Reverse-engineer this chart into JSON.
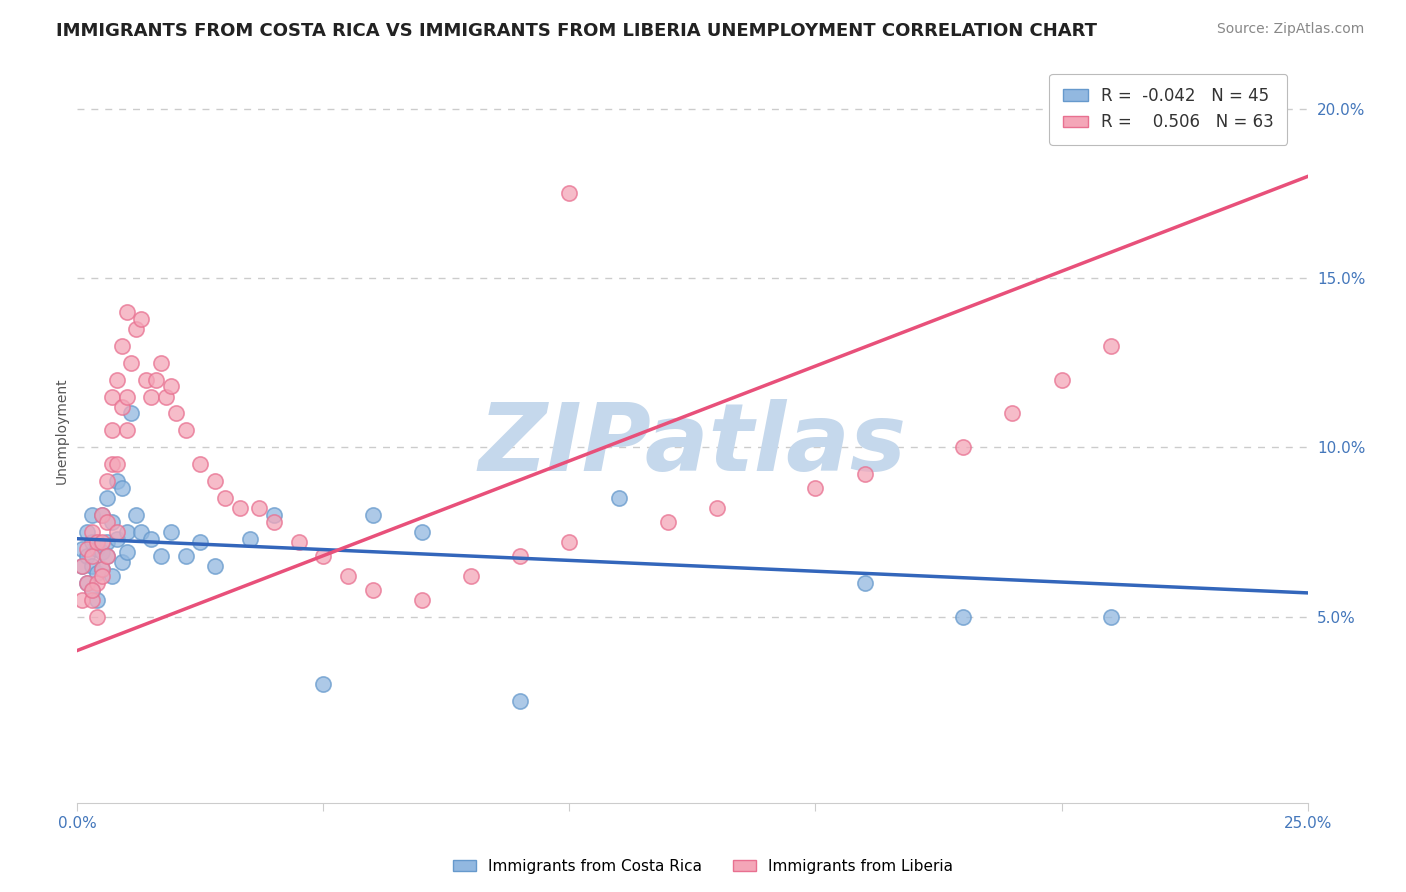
{
  "title": "IMMIGRANTS FROM COSTA RICA VS IMMIGRANTS FROM LIBERIA UNEMPLOYMENT CORRELATION CHART",
  "source": "Source: ZipAtlas.com",
  "ylabel": "Unemployment",
  "xlim": [
    0.0,
    0.25
  ],
  "ylim": [
    -0.005,
    0.215
  ],
  "ytick_positions": [
    0.05,
    0.1,
    0.15,
    0.2
  ],
  "ytick_labels": [
    "5.0%",
    "10.0%",
    "15.0%",
    "20.0%"
  ],
  "xtick_positions": [
    0.0,
    0.05,
    0.1,
    0.15,
    0.2,
    0.25
  ],
  "xtick_labels": [
    "0.0%",
    "",
    "",
    "",
    "",
    "25.0%"
  ],
  "watermark": "ZIPatlas",
  "watermark_color": "#c5d8ec",
  "costa_rica_color": "#92b8e0",
  "liberia_color": "#f4a6b8",
  "costa_rica_edge": "#6699cc",
  "liberia_edge": "#e87090",
  "costa_rica_line_color": "#3366bb",
  "liberia_line_color": "#e8507a",
  "dashed_line_y": 0.05,
  "dashed_line_color": "#cccccc",
  "grid_color": "#e8e8e8",
  "grid_dashes": [
    4,
    4
  ],
  "bg_color": "#ffffff",
  "title_fontsize": 13,
  "source_fontsize": 10,
  "tick_fontsize": 11,
  "legend_fontsize": 12,
  "ylabel_fontsize": 10,
  "watermark_fontsize": 68,
  "legend_R1": "R = ",
  "legend_V1": "-0.042",
  "legend_N1": "N = 45",
  "legend_R2": "R = ",
  "legend_V2": " 0.506",
  "legend_N2": "N = 63",
  "costa_rica_x": [
    0.001,
    0.001,
    0.002,
    0.002,
    0.002,
    0.003,
    0.003,
    0.003,
    0.003,
    0.004,
    0.004,
    0.004,
    0.005,
    0.005,
    0.005,
    0.006,
    0.006,
    0.006,
    0.007,
    0.007,
    0.008,
    0.008,
    0.009,
    0.009,
    0.01,
    0.01,
    0.011,
    0.012,
    0.013,
    0.015,
    0.017,
    0.019,
    0.022,
    0.025,
    0.028,
    0.035,
    0.04,
    0.05,
    0.06,
    0.07,
    0.09,
    0.11,
    0.16,
    0.18,
    0.21
  ],
  "costa_rica_y": [
    0.07,
    0.065,
    0.075,
    0.068,
    0.06,
    0.072,
    0.065,
    0.058,
    0.08,
    0.07,
    0.063,
    0.055,
    0.08,
    0.069,
    0.064,
    0.085,
    0.072,
    0.068,
    0.078,
    0.062,
    0.09,
    0.073,
    0.088,
    0.066,
    0.075,
    0.069,
    0.11,
    0.08,
    0.075,
    0.073,
    0.068,
    0.075,
    0.068,
    0.072,
    0.065,
    0.073,
    0.08,
    0.03,
    0.08,
    0.075,
    0.025,
    0.085,
    0.06,
    0.05,
    0.05
  ],
  "liberia_x": [
    0.001,
    0.001,
    0.002,
    0.002,
    0.003,
    0.003,
    0.003,
    0.004,
    0.004,
    0.004,
    0.005,
    0.005,
    0.005,
    0.006,
    0.006,
    0.006,
    0.007,
    0.007,
    0.007,
    0.008,
    0.008,
    0.009,
    0.009,
    0.01,
    0.01,
    0.01,
    0.011,
    0.012,
    0.013,
    0.014,
    0.015,
    0.016,
    0.017,
    0.018,
    0.019,
    0.02,
    0.022,
    0.025,
    0.028,
    0.03,
    0.033,
    0.037,
    0.04,
    0.045,
    0.05,
    0.055,
    0.06,
    0.07,
    0.08,
    0.09,
    0.1,
    0.12,
    0.13,
    0.15,
    0.16,
    0.18,
    0.19,
    0.2,
    0.21,
    0.003,
    0.005,
    0.008,
    0.1
  ],
  "liberia_y": [
    0.065,
    0.055,
    0.07,
    0.06,
    0.075,
    0.068,
    0.055,
    0.072,
    0.06,
    0.05,
    0.08,
    0.072,
    0.064,
    0.09,
    0.078,
    0.068,
    0.095,
    0.105,
    0.115,
    0.12,
    0.095,
    0.13,
    0.112,
    0.14,
    0.115,
    0.105,
    0.125,
    0.135,
    0.138,
    0.12,
    0.115,
    0.12,
    0.125,
    0.115,
    0.118,
    0.11,
    0.105,
    0.095,
    0.09,
    0.085,
    0.082,
    0.082,
    0.078,
    0.072,
    0.068,
    0.062,
    0.058,
    0.055,
    0.062,
    0.068,
    0.072,
    0.078,
    0.082,
    0.088,
    0.092,
    0.1,
    0.11,
    0.12,
    0.13,
    0.058,
    0.062,
    0.075,
    0.175
  ],
  "cr_line_x0": 0.0,
  "cr_line_x1": 0.25,
  "cr_line_y0": 0.073,
  "cr_line_y1": 0.057,
  "lib_line_x0": 0.0,
  "lib_line_x1": 0.25,
  "lib_line_y0": 0.04,
  "lib_line_y1": 0.18
}
